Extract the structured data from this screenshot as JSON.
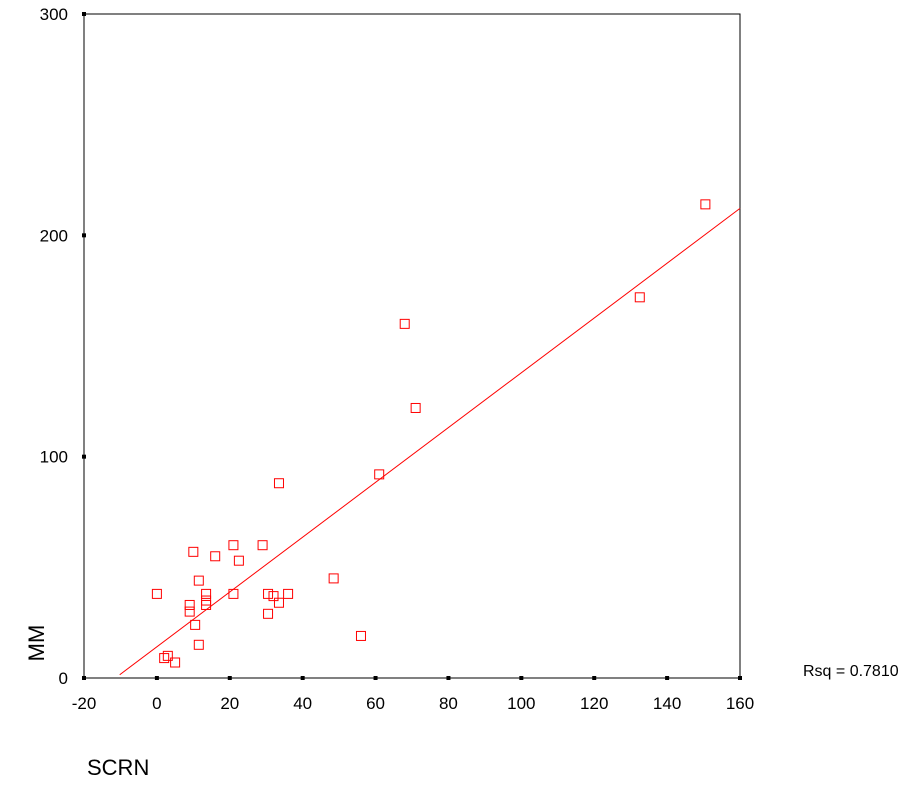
{
  "chart_data": {
    "type": "scatter",
    "xlabel": "SCRN",
    "ylabel": "MM",
    "xlim": [
      -20,
      160
    ],
    "ylim": [
      0,
      300
    ],
    "xticks": [
      -20,
      0,
      20,
      40,
      60,
      80,
      100,
      120,
      140,
      160
    ],
    "yticks": [
      0,
      100,
      200,
      300
    ],
    "xtick_labels": [
      "-20",
      "0",
      "20",
      "40",
      "60",
      "80",
      "100",
      "120",
      "140",
      "160"
    ],
    "ytick_labels": [
      "0",
      "100",
      "200",
      "300"
    ],
    "grid": false,
    "marker": "open-square",
    "color": "#ff0000",
    "points": [
      {
        "x": 0,
        "y": 38
      },
      {
        "x": 2,
        "y": 9
      },
      {
        "x": 3,
        "y": 10
      },
      {
        "x": 5,
        "y": 7
      },
      {
        "x": 9,
        "y": 33
      },
      {
        "x": 9,
        "y": 30
      },
      {
        "x": 10,
        "y": 57
      },
      {
        "x": 10.5,
        "y": 24
      },
      {
        "x": 11.5,
        "y": 44
      },
      {
        "x": 11.5,
        "y": 15
      },
      {
        "x": 13.5,
        "y": 38
      },
      {
        "x": 13.5,
        "y": 35
      },
      {
        "x": 13.5,
        "y": 33
      },
      {
        "x": 16,
        "y": 55
      },
      {
        "x": 21,
        "y": 60
      },
      {
        "x": 21,
        "y": 38
      },
      {
        "x": 22.5,
        "y": 53
      },
      {
        "x": 29,
        "y": 60
      },
      {
        "x": 30.5,
        "y": 38
      },
      {
        "x": 30.5,
        "y": 29
      },
      {
        "x": 32,
        "y": 37
      },
      {
        "x": 33.5,
        "y": 88
      },
      {
        "x": 33.5,
        "y": 34
      },
      {
        "x": 36,
        "y": 38
      },
      {
        "x": 48.5,
        "y": 45
      },
      {
        "x": 56,
        "y": 19
      },
      {
        "x": 61,
        "y": 92
      },
      {
        "x": 68,
        "y": 160
      },
      {
        "x": 71,
        "y": 122
      },
      {
        "x": 132.5,
        "y": 172
      },
      {
        "x": 150.5,
        "y": 214
      }
    ],
    "fit_line": {
      "type": "linear",
      "intercept": 14.1,
      "slope": 1.238,
      "x_start": -10.2,
      "x_end": 160
    },
    "annotation": {
      "label": "Rsq = 0.7810"
    }
  }
}
